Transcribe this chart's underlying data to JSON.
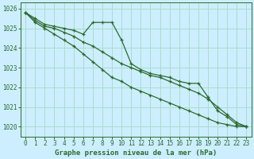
{
  "title": "Graphe pression niveau de la mer (hPa)",
  "bg_color": "#cceeff",
  "grid_color": "#aaddcc",
  "line_color": "#2d6a2d",
  "xlim_min": -0.5,
  "xlim_max": 23.5,
  "ylim_min": 1019.5,
  "ylim_max": 1026.3,
  "yticks": [
    1020,
    1021,
    1022,
    1023,
    1024,
    1025,
    1026
  ],
  "xticks": [
    0,
    1,
    2,
    3,
    4,
    5,
    6,
    7,
    8,
    9,
    10,
    11,
    12,
    13,
    14,
    15,
    16,
    17,
    18,
    19,
    20,
    21,
    22,
    23
  ],
  "series": [
    [
      1025.8,
      1025.5,
      1025.2,
      1025.1,
      1025.0,
      1024.9,
      1024.7,
      1025.3,
      1025.3,
      1025.3,
      1024.4,
      1023.2,
      1022.9,
      1022.7,
      1022.6,
      1022.5,
      1022.3,
      1022.2,
      1022.2,
      1021.5,
      1020.8,
      1020.5,
      1020.1,
      1020.0
    ],
    [
      1025.8,
      1025.4,
      1025.1,
      1025.0,
      1024.8,
      1024.6,
      1024.3,
      1024.1,
      1023.8,
      1023.5,
      1023.2,
      1023.0,
      1022.8,
      1022.6,
      1022.5,
      1022.3,
      1022.1,
      1021.9,
      1021.7,
      1021.4,
      1021.0,
      1020.6,
      1020.2,
      1020.0
    ],
    [
      1025.8,
      1025.3,
      1025.0,
      1024.7,
      1024.4,
      1024.1,
      1023.7,
      1023.3,
      1022.9,
      1022.5,
      1022.3,
      1022.0,
      1021.8,
      1021.6,
      1021.4,
      1021.2,
      1021.0,
      1020.8,
      1020.6,
      1020.4,
      1020.2,
      1020.1,
      1020.0,
      1020.0
    ]
  ],
  "tick_fontsize": 5.5,
  "xlabel_fontsize": 6.5,
  "linewidth": 0.9,
  "markersize": 3.5
}
